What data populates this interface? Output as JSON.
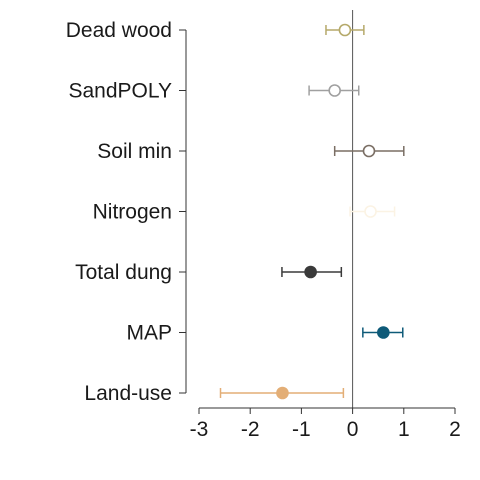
{
  "chart_data": {
    "type": "scatter",
    "title": "",
    "xlabel": "",
    "ylabel": "",
    "xlim": [
      -3,
      2
    ],
    "xticks": [
      "-3",
      "-2",
      "-1",
      "0",
      "1",
      "2"
    ],
    "reference_line_x": 0,
    "grid": false,
    "legend": "none",
    "categories": [
      "Dead wood",
      "SandPOLY",
      "Soil min",
      "Nitrogen",
      "Total dung",
      "MAP",
      "Land-use"
    ],
    "estimates": [
      -0.15,
      -0.35,
      0.32,
      0.35,
      -0.82,
      0.6,
      -1.37
    ],
    "lower": [
      -0.52,
      -0.85,
      -0.35,
      -0.05,
      -1.38,
      0.2,
      -2.58
    ],
    "upper": [
      0.22,
      0.12,
      1.0,
      0.82,
      -0.22,
      0.98,
      -0.18
    ],
    "filled": [
      false,
      false,
      false,
      false,
      true,
      true,
      true
    ],
    "colors": [
      "#b5a96a",
      "#a0a0a0",
      "#7a6e64",
      "#fbf3e4",
      "#3a3a3a",
      "#0e5a78",
      "#e3ae76"
    ]
  }
}
